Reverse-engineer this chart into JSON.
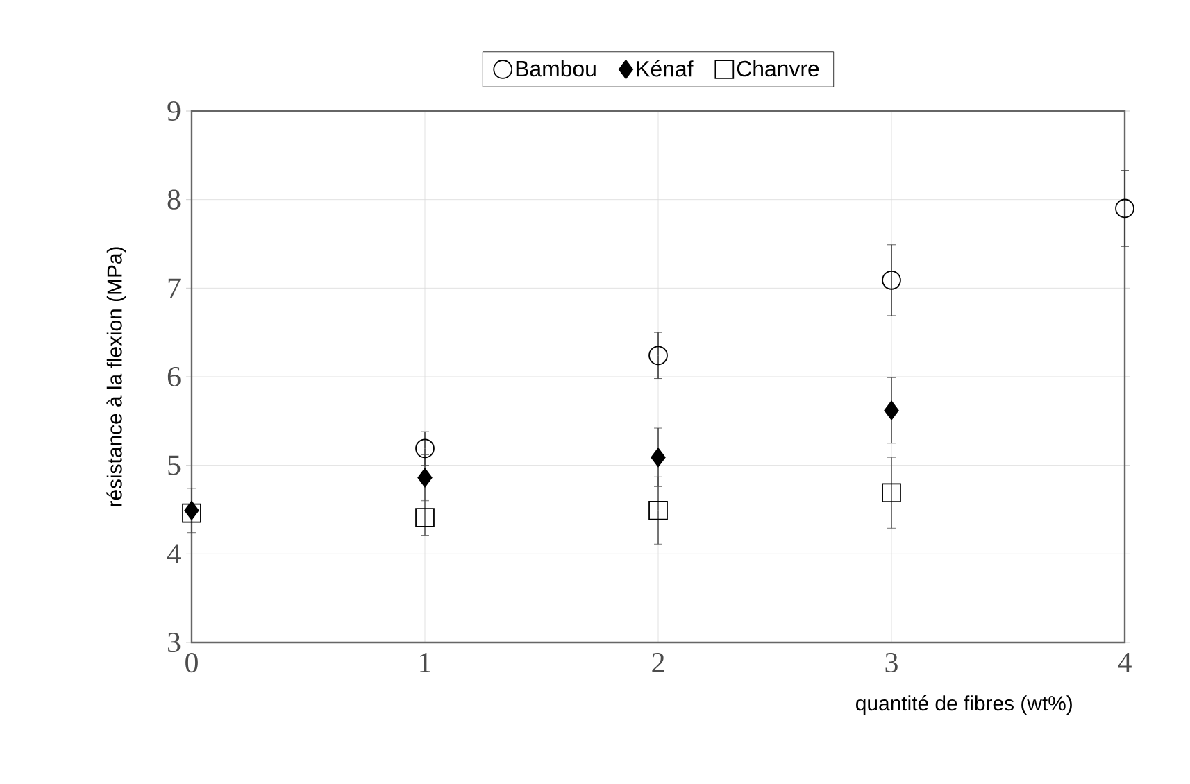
{
  "chart_data": {
    "type": "scatter",
    "xlabel": "quantité de fibres (wt%)",
    "ylabel": "résistance à la flexion (MPa)",
    "x": [
      0,
      1,
      2,
      3,
      4
    ],
    "series": [
      {
        "name": "Bambou",
        "color": "#000000",
        "marker": "circle",
        "values": [
          null,
          5.19,
          6.24,
          7.09,
          7.9
        ],
        "errors": [
          null,
          0.19,
          0.26,
          0.4,
          0.43
        ]
      },
      {
        "name": "Kénaf",
        "color": "#000000",
        "marker": "diamond",
        "values": [
          4.49,
          4.86,
          5.09,
          5.62,
          null
        ],
        "errors": [
          0.25,
          0.26,
          0.33,
          0.37,
          null
        ]
      },
      {
        "name": "Chanvre",
        "color": "#000000",
        "marker": "square",
        "values": [
          4.46,
          4.41,
          4.49,
          4.69,
          null
        ],
        "errors": [
          null,
          0.2,
          0.38,
          0.4,
          null
        ]
      }
    ],
    "xlim": [
      0,
      4
    ],
    "ylim": [
      3,
      9
    ],
    "xticks": [
      0,
      1,
      2,
      3,
      4
    ],
    "yticks": [
      3,
      4,
      5,
      6,
      7,
      8,
      9
    ],
    "grid": true,
    "legend": "top"
  }
}
